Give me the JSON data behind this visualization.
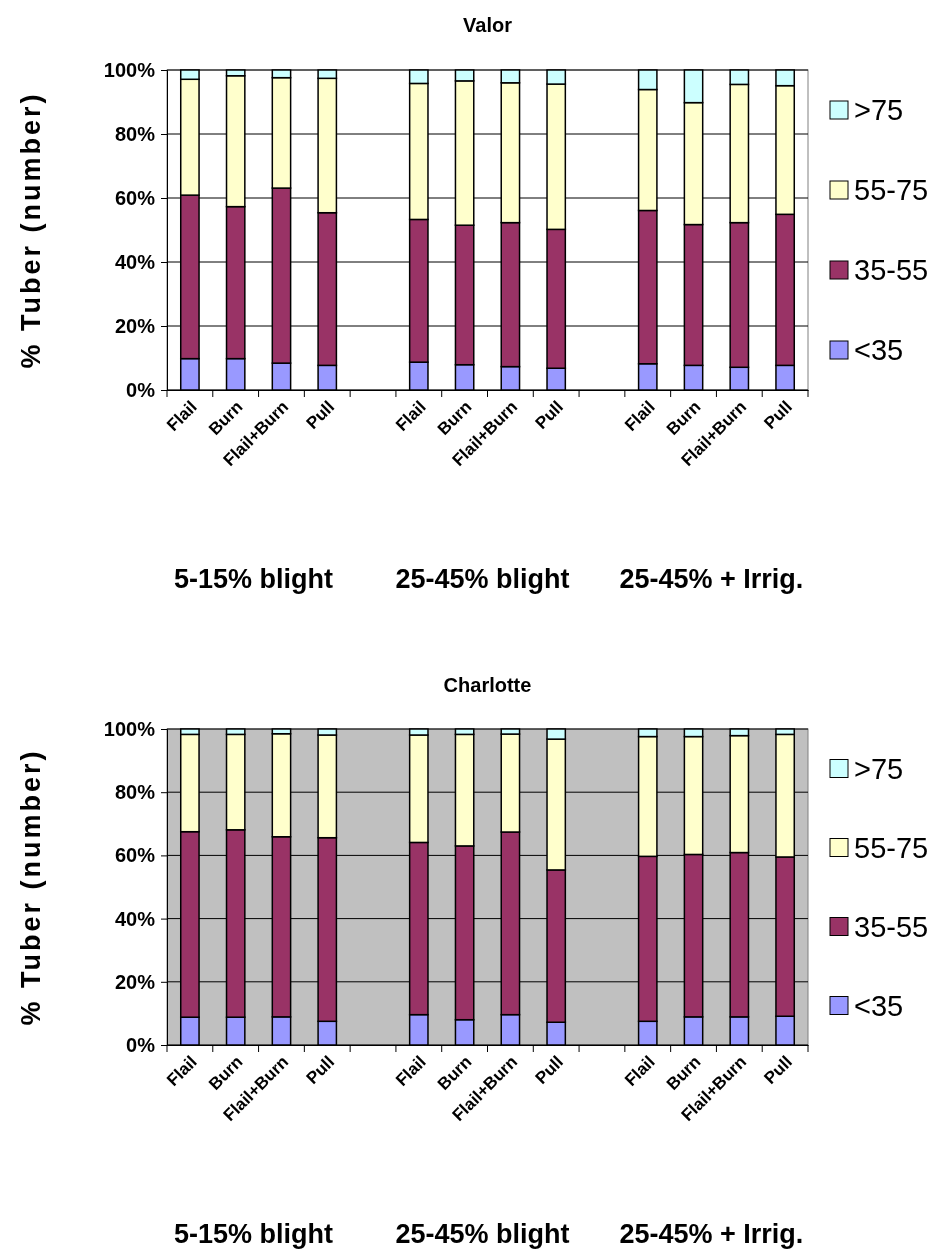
{
  "chart_data": [
    {
      "type": "bar",
      "title": "Valor",
      "ylabel": "% Tuber (number)",
      "stacked": true,
      "categories": [
        "Flail",
        "Burn",
        "Flail+Burn",
        "Pull",
        null,
        "Flail",
        "Burn",
        "Flail+Burn",
        "Pull",
        null,
        "Flail",
        "Burn",
        "Flail+Burn",
        "Pull"
      ],
      "series": [
        {
          "name": "<35",
          "color": "#9999ff",
          "values": [
            9.8,
            9.8,
            8.4,
            7.7,
            null,
            8.7,
            7.9,
            7.3,
            6.8,
            null,
            8.2,
            7.7,
            7.1,
            7.7
          ]
        },
        {
          "name": "35-55",
          "color": "#993366",
          "values": [
            51.1,
            47.5,
            54.7,
            47.7,
            null,
            44.6,
            43.6,
            45,
            43.4,
            null,
            47.9,
            44,
            45.2,
            47.2
          ]
        },
        {
          "name": "55-75",
          "color": "#ffffcc",
          "values": [
            36.2,
            40.9,
            34.5,
            42,
            null,
            42.5,
            45.1,
            43.7,
            45.4,
            null,
            37.8,
            38.1,
            43.2,
            40.2
          ]
        },
        {
          "name": ">75",
          "color": "#ccffff",
          "values": [
            2.9,
            1.8,
            2.4,
            2.6,
            null,
            4.2,
            3.4,
            4,
            4.4,
            null,
            6.1,
            10.2,
            4.5,
            4.9
          ]
        }
      ],
      "ylim": [
        0,
        100
      ],
      "yticks": [
        {
          "value": 0,
          "label": "0%"
        },
        {
          "value": 20,
          "label": "20%"
        },
        {
          "value": 40,
          "label": "40%"
        },
        {
          "value": 60,
          "label": "60%"
        },
        {
          "value": 80,
          "label": "80%"
        },
        {
          "value": 100,
          "label": "100%"
        }
      ],
      "grid": "y",
      "legend": "right",
      "annotations": [
        "5-15% blight",
        "25-45% blight",
        "25-45% + Irrig."
      ]
    },
    {
      "type": "bar",
      "title": "Charlotte",
      "ylabel": "% Tuber (number)",
      "stacked": true,
      "categories": [
        "Flail",
        "Burn",
        "Flail+Burn",
        "Pull",
        null,
        "Flail",
        "Burn",
        "Flail+Burn",
        "Pull",
        null,
        "Flail",
        "Burn",
        "Flail+Burn",
        "Pull"
      ],
      "series": [
        {
          "name": "<35",
          "color": "#9999ff",
          "values": [
            8.8,
            8.8,
            8.9,
            7.5,
            null,
            9.6,
            8,
            9.6,
            7.2,
            null,
            7.5,
            8.9,
            8.9,
            9.1
          ]
        },
        {
          "name": "35-55",
          "color": "#993366",
          "values": [
            58.7,
            59.3,
            57,
            58.1,
            null,
            54.5,
            55,
            57.8,
            48.2,
            null,
            52.2,
            51.4,
            52,
            50.4
          ]
        },
        {
          "name": "55-75",
          "color": "#ffffcc",
          "values": [
            30.8,
            30.2,
            32.6,
            32.5,
            null,
            34,
            35.3,
            31,
            41.4,
            null,
            37.9,
            37.3,
            37,
            38.8
          ]
        },
        {
          "name": ">75",
          "color": "#ccffff",
          "values": [
            1.7,
            1.7,
            1.5,
            1.9,
            null,
            1.9,
            1.7,
            1.6,
            3.2,
            null,
            2.4,
            2.4,
            2.1,
            1.7
          ]
        }
      ],
      "ylim": [
        0,
        100
      ],
      "yticks": [
        {
          "value": 0,
          "label": "0%"
        },
        {
          "value": 20,
          "label": "20%"
        },
        {
          "value": 40,
          "label": "40%"
        },
        {
          "value": 60,
          "label": "60%"
        },
        {
          "value": 80,
          "label": "80%"
        },
        {
          "value": 100,
          "label": "100%"
        }
      ],
      "grid": "y",
      "legend": "right",
      "annotations": [
        "5-15% blight",
        "25-45% blight",
        "25-45% + Irrig."
      ]
    }
  ]
}
